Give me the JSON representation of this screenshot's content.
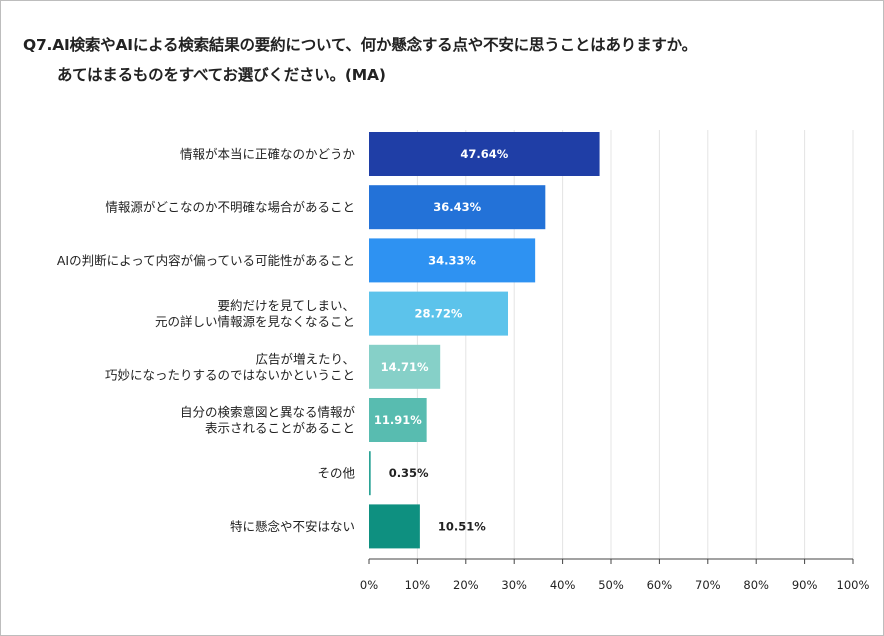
{
  "title_line1": "Q7.AI検索やAIによる検索結果の要約について、何か懸念する点や不安に思うことはありますか。",
  "title_line2": "あてはまるものをすべてお選びください。(MA)",
  "chart_data": {
    "type": "bar",
    "orientation": "horizontal",
    "categories": [
      [
        "情報が本当に正確なのかどうか"
      ],
      [
        "情報源がどこなのか不明確な場合があること"
      ],
      [
        "AIの判断によって内容が偏っている可能性があること"
      ],
      [
        "要約だけを見てしまい、",
        "元の詳しい情報源を見なくなること"
      ],
      [
        "広告が増えたり、",
        "巧妙になったりするのではないかということ"
      ],
      [
        "自分の検索意図と異なる情報が",
        "表示されることがあること"
      ],
      [
        "その他"
      ],
      [
        "特に懸念や不安はない"
      ]
    ],
    "values": [
      47.64,
      36.43,
      34.33,
      28.72,
      14.71,
      11.91,
      0.35,
      10.51
    ],
    "value_labels": [
      "47.64%",
      "36.43%",
      "34.33%",
      "28.72%",
      "14.71%",
      "11.91%",
      "0.35%",
      "10.51%"
    ],
    "colors": [
      "#1f3ea6",
      "#2372d8",
      "#2e92f2",
      "#5cc3eb",
      "#86d0c8",
      "#58bcb0",
      "#2aa395",
      "#0e9080"
    ],
    "xlim": [
      0,
      100
    ],
    "xticks": [
      "0%",
      "10%",
      "20%",
      "30%",
      "40%",
      "50%",
      "60%",
      "70%",
      "80%",
      "90%",
      "100%"
    ],
    "grid": true
  }
}
